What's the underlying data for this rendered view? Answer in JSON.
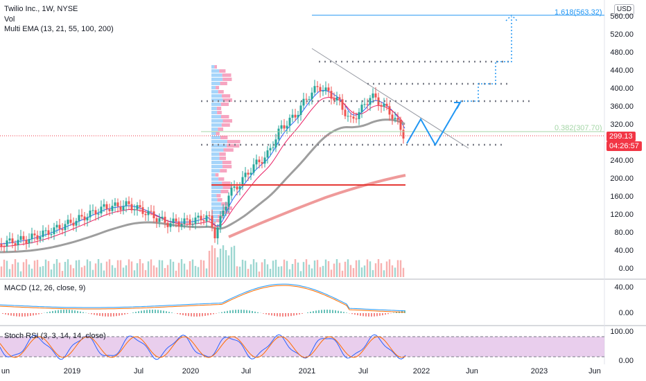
{
  "symbol": {
    "title": "Twilio Inc., 1W, NYSE",
    "vol_label": "Vol",
    "ema_label": "Multi EMA (13, 21, 55, 100, 200)",
    "currency": "USD"
  },
  "price_axis": [
    "560.00",
    "520.00",
    "480.00",
    "440.00",
    "400.00",
    "360.00",
    "320.00",
    "280.00",
    "240.00",
    "200.00",
    "160.00",
    "120.00",
    "80.00",
    "40.00",
    "0.00"
  ],
  "time_axis": [
    "un",
    "2019",
    "Jul",
    "2020",
    "Jul",
    "2021",
    "Jul",
    "2022",
    "Jun",
    "2023",
    "Jun"
  ],
  "last_price": {
    "value": "299.13",
    "countdown": "04:26:57",
    "color": "#f23645"
  },
  "fib": {
    "level_1": "1.618(563.32)",
    "level_2": "0.382(307.70)"
  },
  "macd": {
    "label": "MACD (12, 26, close, 9)",
    "axis": [
      "40.00",
      "0.00"
    ]
  },
  "stoch": {
    "label": "Stoch RSI (3, 3, 14, 14, close)",
    "axis": [
      "100.00",
      "0.00"
    ]
  },
  "colors": {
    "up": "#26a69a",
    "down": "#ef5350",
    "accent_blue": "#2196f3",
    "stoch_band": "#e1bee7"
  }
}
